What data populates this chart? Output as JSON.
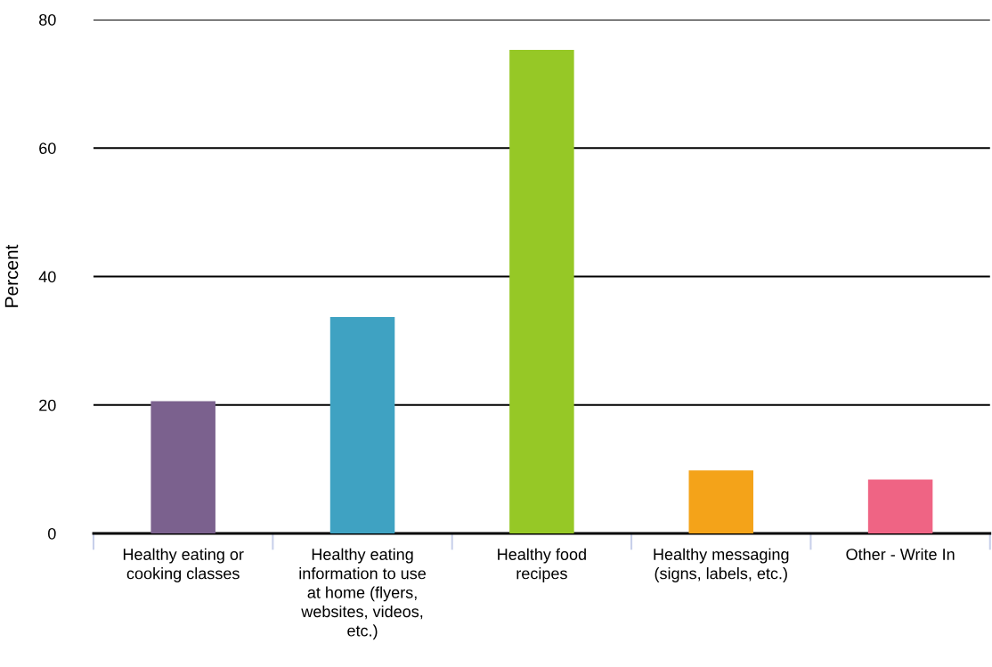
{
  "chart_data": {
    "type": "bar",
    "ylabel": "Percent",
    "categories": [
      "Healthy eating or\ncooking classes",
      "Healthy eating\ninformation to use\nat home (flyers,\nwebsites, videos,\netc.)",
      "Healthy food\nrecipes",
      "Healthy messaging\n(signs, labels, etc.)",
      "Other - Write In"
    ],
    "values": [
      20.6,
      33.7,
      75.3,
      9.8,
      8.4
    ],
    "colors": [
      "#7b618e",
      "#3fa2c2",
      "#96c826",
      "#f4a319",
      "#ef6484"
    ],
    "ylim": [
      0,
      80
    ],
    "yticks": [
      0,
      20,
      40,
      60,
      80
    ],
    "grid": "y",
    "legend": false
  }
}
